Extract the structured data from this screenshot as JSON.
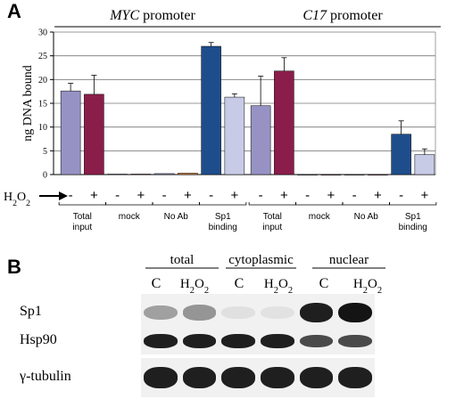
{
  "panel_a": {
    "letter": "A",
    "promoters": [
      {
        "name": "MYC",
        "suffix": " promoter"
      },
      {
        "name": "C17",
        "suffix": " promoter"
      }
    ],
    "treatment_label": "H2O2",
    "minus": "-",
    "plus": "+",
    "group_labels": [
      {
        "line1": "Total",
        "line2": "input"
      },
      {
        "line1": "mock",
        "line2": ""
      },
      {
        "line1": "No Ab",
        "line2": ""
      },
      {
        "line1": "Sp1",
        "line2": "binding"
      },
      {
        "line1": "Total",
        "line2": "input"
      },
      {
        "line1": "mock",
        "line2": ""
      },
      {
        "line1": "No Ab",
        "line2": ""
      },
      {
        "line1": "Sp1",
        "line2": "binding"
      }
    ]
  },
  "chart_data": {
    "type": "bar",
    "ylabel": "ng DNA bound",
    "ylim": [
      0,
      30
    ],
    "yticks": [
      0,
      5,
      10,
      15,
      20,
      25,
      30
    ],
    "grid": true,
    "bars": [
      {
        "group": "MYC Total input",
        "treatment": "-",
        "value": 17.6,
        "error": 1.6,
        "color": "#9693c4"
      },
      {
        "group": "MYC Total input",
        "treatment": "+",
        "value": 16.9,
        "error": 4.0,
        "color": "#8b1d4a"
      },
      {
        "group": "MYC mock",
        "treatment": "-",
        "value": 0.1,
        "error": 0,
        "color": "#9693c4"
      },
      {
        "group": "MYC mock",
        "treatment": "+",
        "value": 0.1,
        "error": 0,
        "color": "#8b1d4a"
      },
      {
        "group": "MYC No Ab",
        "treatment": "-",
        "value": 0.2,
        "error": 0,
        "color": "#9693c4"
      },
      {
        "group": "MYC No Ab",
        "treatment": "+",
        "value": 0.3,
        "error": 0,
        "color": "#d9864a"
      },
      {
        "group": "MYC Sp1 binding",
        "treatment": "-",
        "value": 27.0,
        "error": 0.8,
        "color": "#1e4d8c"
      },
      {
        "group": "MYC Sp1 binding",
        "treatment": "+",
        "value": 16.3,
        "error": 0.7,
        "color": "#c8cbe6"
      },
      {
        "group": "C17 Total input",
        "treatment": "-",
        "value": 14.5,
        "error": 6.2,
        "color": "#9693c4"
      },
      {
        "group": "C17 Total input",
        "treatment": "+",
        "value": 21.8,
        "error": 2.8,
        "color": "#8b1d4a"
      },
      {
        "group": "C17 mock",
        "treatment": "-",
        "value": 0,
        "error": 0,
        "color": "#9693c4"
      },
      {
        "group": "C17 mock",
        "treatment": "+",
        "value": 0,
        "error": 0,
        "color": "#8b1d4a"
      },
      {
        "group": "C17 No Ab",
        "treatment": "-",
        "value": 0,
        "error": 0,
        "color": "#9693c4"
      },
      {
        "group": "C17 No Ab",
        "treatment": "+",
        "value": 0,
        "error": 0,
        "color": "#8b1d4a"
      },
      {
        "group": "C17 Sp1 binding",
        "treatment": "-",
        "value": 8.5,
        "error": 2.8,
        "color": "#1e4d8c"
      },
      {
        "group": "C17 Sp1 binding",
        "treatment": "+",
        "value": 4.2,
        "error": 1.2,
        "color": "#c8cbe6"
      }
    ]
  },
  "panel_b": {
    "letter": "B",
    "fractions": [
      "total",
      "cytoplasmic",
      "nuclear"
    ],
    "lane_labels": [
      "C",
      "H2O2",
      "C",
      "H2O2",
      "C",
      "H2O2"
    ],
    "rows": [
      {
        "label": "Sp1",
        "intensities": [
          0.35,
          0.4,
          0.05,
          0.04,
          0.95,
          1.0
        ]
      },
      {
        "label": "Hsp90",
        "intensities": [
          0.95,
          0.95,
          0.95,
          0.95,
          0.75,
          0.75
        ]
      },
      {
        "label": "γ-tubulin",
        "intensities": [
          0.95,
          0.95,
          0.95,
          0.95,
          0.95,
          0.95
        ]
      }
    ]
  }
}
